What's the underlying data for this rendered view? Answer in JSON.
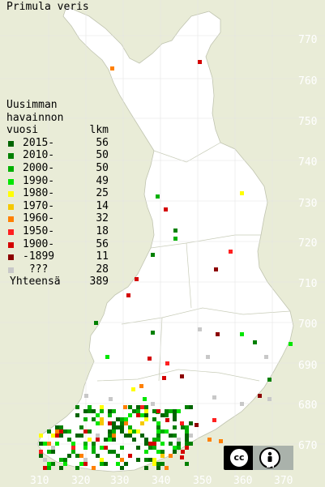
{
  "title": "Primula veris",
  "legend": {
    "heading": [
      "Uusimman",
      "havainnon"
    ],
    "column_year": "vuosi",
    "column_count": "lkm",
    "items": [
      {
        "label": "2015-",
        "count": "56",
        "color": "#006400"
      },
      {
        "label": "2010-",
        "count": "50",
        "color": "#008000"
      },
      {
        "label": "2000-",
        "count": "50",
        "color": "#00b000"
      },
      {
        "label": "1990-",
        "count": "49",
        "color": "#00e600"
      },
      {
        "label": "1980-",
        "count": "25",
        "color": "#ffff00"
      },
      {
        "label": "1970-",
        "count": "14",
        "color": "#f5c800"
      },
      {
        "label": "1960-",
        "count": "32",
        "color": "#ff8000"
      },
      {
        "label": "1950-",
        "count": "18",
        "color": "#ff2020"
      },
      {
        "label": "1900-",
        "count": "56",
        "color": "#d40000"
      },
      {
        "label": "-1899",
        "count": "11",
        "color": "#8c0000"
      },
      {
        "label": " ???",
        "count": "28",
        "color": "#c8c8c8"
      }
    ],
    "total_label": "Yhteensä",
    "total_count": "389"
  },
  "grid": {
    "northing_labels": [
      "770",
      "760",
      "750",
      "740",
      "730",
      "720",
      "710",
      "700",
      "690",
      "680",
      "670"
    ],
    "easting_labels": [
      "310",
      "320",
      "330",
      "340",
      "350",
      "360",
      "370"
    ]
  },
  "license": {
    "cc": "cc",
    "by": "BY",
    "icon": "person-icon"
  }
}
